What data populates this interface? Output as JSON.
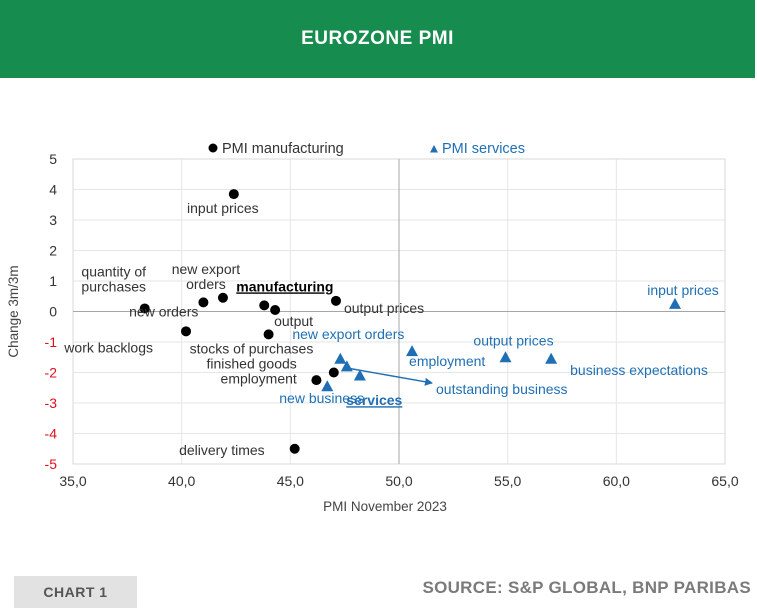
{
  "header": {
    "title": "EUROZONE PMI"
  },
  "footer": {
    "chart_label": "CHART 1",
    "source": "SOURCE: S&P GLOBAL, BNP PARIBAS"
  },
  "colors": {
    "brand_green": "#168c4f",
    "manufacturing": "#000000",
    "services": "#1f6fb4",
    "negative_tick": "#e0101e",
    "text": "#333333"
  },
  "chart_data": {
    "type": "scatter",
    "xlabel": "PMI November 2023",
    "ylabel": "Change 3m/3m",
    "xlim": [
      35,
      65
    ],
    "ylim": [
      -5,
      5
    ],
    "x_ticks": [
      "35,0",
      "40,0",
      "45,0",
      "50,0",
      "55,0",
      "60,0",
      "65,0"
    ],
    "y_ticks": [
      "5",
      "4",
      "3",
      "2",
      "1",
      "0",
      "-1",
      "-2",
      "-3",
      "-4",
      "-5"
    ],
    "grid": true,
    "legend": [
      {
        "name": "PMI manufacturing",
        "marker": "circle"
      },
      {
        "name": "PMI services",
        "marker": "triangle"
      }
    ],
    "series": [
      {
        "name": "PMI manufacturing",
        "points": [
          {
            "label": "input prices",
            "x": 42.4,
            "y": 3.85
          },
          {
            "label": "quantity of purchases",
            "x": 38.3,
            "y": 0.1
          },
          {
            "label": "new export orders",
            "x": 41.9,
            "y": 0.45
          },
          {
            "label": "new orders",
            "x": 41.0,
            "y": 0.3
          },
          {
            "label": "manufacturing",
            "x": 43.8,
            "y": 0.2,
            "highlight": true
          },
          {
            "label": "output",
            "x": 44.3,
            "y": 0.05
          },
          {
            "label": "output prices",
            "x": 47.1,
            "y": 0.35
          },
          {
            "label": "work backlogs",
            "x": 40.2,
            "y": -0.65
          },
          {
            "label": "stocks of purchases",
            "x": 44.0,
            "y": -0.75
          },
          {
            "label": "finished goods employment",
            "x": 47.0,
            "y": -2.0
          },
          {
            "label": "",
            "x": 46.2,
            "y": -2.25
          },
          {
            "label": "delivery times",
            "x": 45.2,
            "y": -4.5
          }
        ]
      },
      {
        "name": "PMI services",
        "points": [
          {
            "label": "input prices",
            "x": 62.7,
            "y": 0.25
          },
          {
            "label": "output prices",
            "x": 54.9,
            "y": -1.5
          },
          {
            "label": "business expectations",
            "x": 57.0,
            "y": -1.55
          },
          {
            "label": "employment",
            "x": 50.6,
            "y": -1.3
          },
          {
            "label": "new export orders",
            "x": 47.3,
            "y": -1.55
          },
          {
            "label": "",
            "x": 47.6,
            "y": -1.8
          },
          {
            "label": "outstanding business",
            "x": 48.2,
            "y": -2.1
          },
          {
            "label": "services",
            "x": 46.7,
            "y": -2.45,
            "highlight": true
          },
          {
            "label": "new business",
            "x": 46.7,
            "y": -2.45
          }
        ]
      }
    ]
  }
}
